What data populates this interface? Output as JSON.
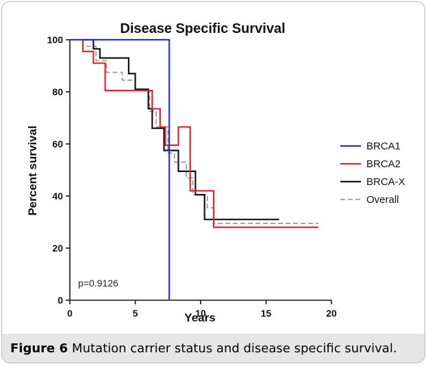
{
  "chart_data": {
    "type": "line",
    "subtype": "kaplan-meier step",
    "title": "Disease Specific Survival",
    "xlabel": "Years",
    "ylabel": "Percent survival",
    "xlim": [
      0,
      20
    ],
    "ylim": [
      0,
      100
    ],
    "xticks": [
      0,
      5,
      10,
      15,
      20
    ],
    "yticks": [
      0,
      20,
      40,
      60,
      80,
      100
    ],
    "grid": false,
    "legend_position": "right",
    "annotation": "p=0.9126",
    "series": [
      {
        "name": "BRCA1",
        "color": "#2b2fbf",
        "dash": "solid",
        "x": [
          0,
          7.6,
          7.6
        ],
        "y": [
          100,
          100,
          0
        ]
      },
      {
        "name": "BRCA2",
        "color": "#d62a2a",
        "dash": "solid",
        "x": [
          1,
          1,
          1.8,
          1.8,
          2.7,
          2.7,
          6.3,
          6.3,
          6.9,
          6.9,
          7.3,
          7.3,
          8.3,
          8.3,
          9.2,
          9.2,
          11,
          11,
          19
        ],
        "y": [
          100,
          95.5,
          95.5,
          91,
          91,
          80.5,
          80.5,
          73.5,
          73.5,
          66.5,
          66.5,
          59.5,
          59.5,
          66.5,
          66.5,
          42,
          42,
          28,
          28
        ]
      },
      {
        "name": "BRCA-X",
        "color": "#111111",
        "dash": "solid",
        "x": [
          1,
          1.8,
          1.8,
          2.3,
          2.3,
          4.5,
          4.5,
          5,
          5,
          6,
          6,
          6.3,
          6.3,
          7.2,
          7.2,
          8.3,
          8.3,
          9.6,
          9.6,
          10.3,
          10.3,
          16
        ],
        "y": [
          100,
          100,
          96.5,
          96.5,
          93,
          93,
          87,
          87,
          81,
          81,
          73.5,
          73.5,
          66,
          66,
          57.5,
          57.5,
          49.5,
          49.5,
          40.5,
          40.5,
          31,
          31
        ]
      },
      {
        "name": "Overall",
        "color": "#8e8e8e",
        "dash": "dashed",
        "x": [
          0,
          1,
          1,
          2,
          2,
          2.8,
          2.8,
          4,
          4,
          5,
          5,
          6.1,
          6.1,
          6.6,
          6.6,
          7.5,
          7.5,
          8,
          8,
          8.9,
          8.9,
          9.4,
          9.4,
          10.5,
          10.5,
          11,
          11,
          19
        ],
        "y": [
          100,
          100,
          97.5,
          97.5,
          92,
          92,
          87.5,
          87.5,
          84.5,
          84.5,
          80.5,
          80.5,
          72.5,
          72.5,
          66.5,
          66.5,
          56.5,
          56.5,
          53,
          53,
          47,
          47,
          40.5,
          40.5,
          35.5,
          35.5,
          29.5,
          29.5
        ]
      }
    ]
  },
  "caption": {
    "lead": "Figure 6",
    "text": "Mutation carrier status and disease specific survival."
  }
}
